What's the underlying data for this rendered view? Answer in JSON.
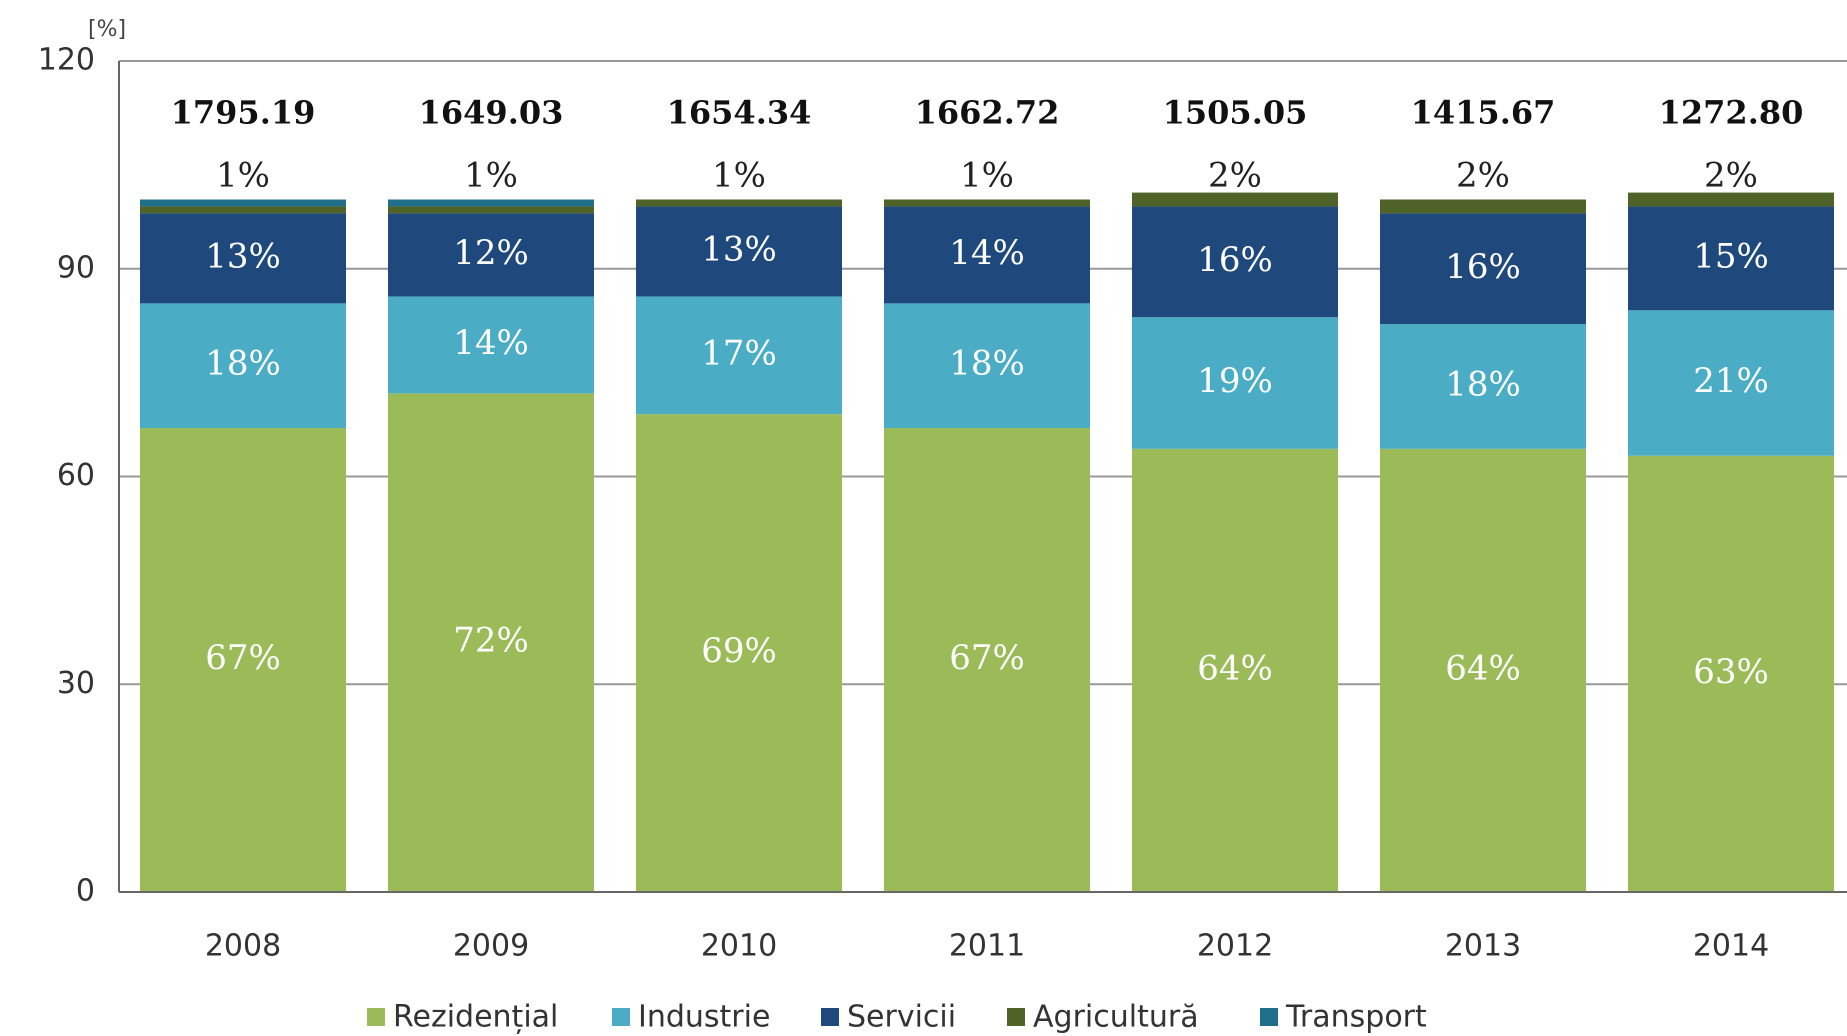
{
  "chart_data": {
    "type": "stacked_bar",
    "y_unit": "[%]",
    "categories": [
      "2008",
      "2009",
      "2010",
      "2011",
      "2012",
      "2013",
      "2014"
    ],
    "series": [
      {
        "name": "Rezidențial",
        "color": "#9bbb59",
        "values": [
          67,
          72,
          69,
          67,
          64,
          64,
          63
        ],
        "value_labels": [
          "67%",
          "72%",
          "69%",
          "67%",
          "64%",
          "64%",
          "63%"
        ]
      },
      {
        "name": "Industrie",
        "color": "#4bacc6",
        "values": [
          18,
          14,
          17,
          18,
          19,
          18,
          21
        ],
        "value_labels": [
          "18%",
          "14%",
          "17%",
          "18%",
          "19%",
          "18%",
          "21%"
        ]
      },
      {
        "name": "Servicii",
        "color": "#1f497d",
        "values": [
          13,
          12,
          13,
          14,
          16,
          16,
          15
        ],
        "value_labels": [
          "13%",
          "12%",
          "13%",
          "14%",
          "16%",
          "16%",
          "15%"
        ]
      },
      {
        "name": "Agricultură",
        "color": "#4f6228",
        "values": [
          1,
          1,
          1,
          1,
          2,
          2,
          2
        ],
        "value_labels": [
          "1%",
          "1%",
          "1%",
          "1%",
          "2%",
          "2%",
          "2%"
        ]
      },
      {
        "name": "Transport",
        "color": "#1f6f8b",
        "values": [
          1,
          1,
          0,
          0,
          0,
          0,
          0
        ]
      }
    ],
    "totals": {
      "values": [
        1795.19,
        1649.03,
        1654.34,
        1662.72,
        1505.05,
        1415.67,
        1272.8
      ],
      "value_labels": [
        "1795.19",
        "1649.03",
        "1654.34",
        "1662.72",
        "1505.05",
        "1415.67",
        "1272.80"
      ]
    },
    "ylim": [
      0,
      120
    ],
    "yticks": [
      0,
      30,
      60,
      90,
      120
    ],
    "grid": true,
    "legend": "bottom"
  }
}
